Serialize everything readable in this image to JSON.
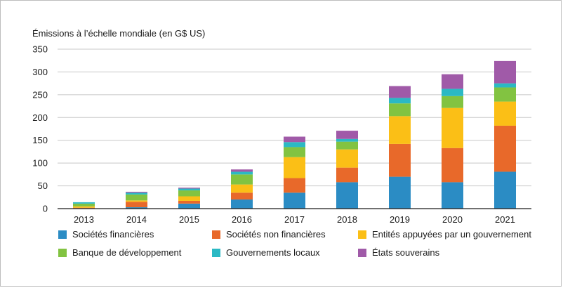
{
  "chart_data": {
    "type": "bar",
    "stacked": true,
    "title": "",
    "ylabel": "Émissions à l’échelle mondiale (en G$ US)",
    "xlabel": "",
    "ylim": [
      0,
      350
    ],
    "yticks": [
      "0",
      "50",
      "100",
      "150",
      "200",
      "250",
      "300",
      "350"
    ],
    "grid": true,
    "legend_position": "bottom",
    "categories": [
      "2013",
      "2014",
      "2015",
      "2016",
      "2017",
      "2018",
      "2019",
      "2020",
      "2021"
    ],
    "series": [
      {
        "name": "Sociétés financières",
        "color": "#2b8cc4",
        "values": [
          1,
          3,
          11,
          20,
          35,
          58,
          70,
          58,
          81
        ]
      },
      {
        "name": "Sociétés non financières",
        "color": "#e8692a",
        "values": [
          1,
          12,
          6,
          15,
          32,
          32,
          72,
          75,
          101
        ]
      },
      {
        "name": "Entités appuyées par un gouvernement",
        "color": "#fbbf16",
        "values": [
          3,
          3,
          10,
          18,
          46,
          40,
          61,
          88,
          53
        ]
      },
      {
        "name": "Banque de développement",
        "color": "#82c341",
        "values": [
          6,
          13,
          13,
          22,
          22,
          17,
          28,
          26,
          31
        ]
      },
      {
        "name": "Gouvernements locaux",
        "color": "#2bb9c4",
        "values": [
          3,
          4,
          4,
          6,
          11,
          6,
          12,
          16,
          9
        ]
      },
      {
        "name": "États souverains",
        "color": "#a05aa8",
        "values": [
          0,
          2,
          2,
          5,
          12,
          18,
          26,
          32,
          49
        ]
      }
    ]
  }
}
